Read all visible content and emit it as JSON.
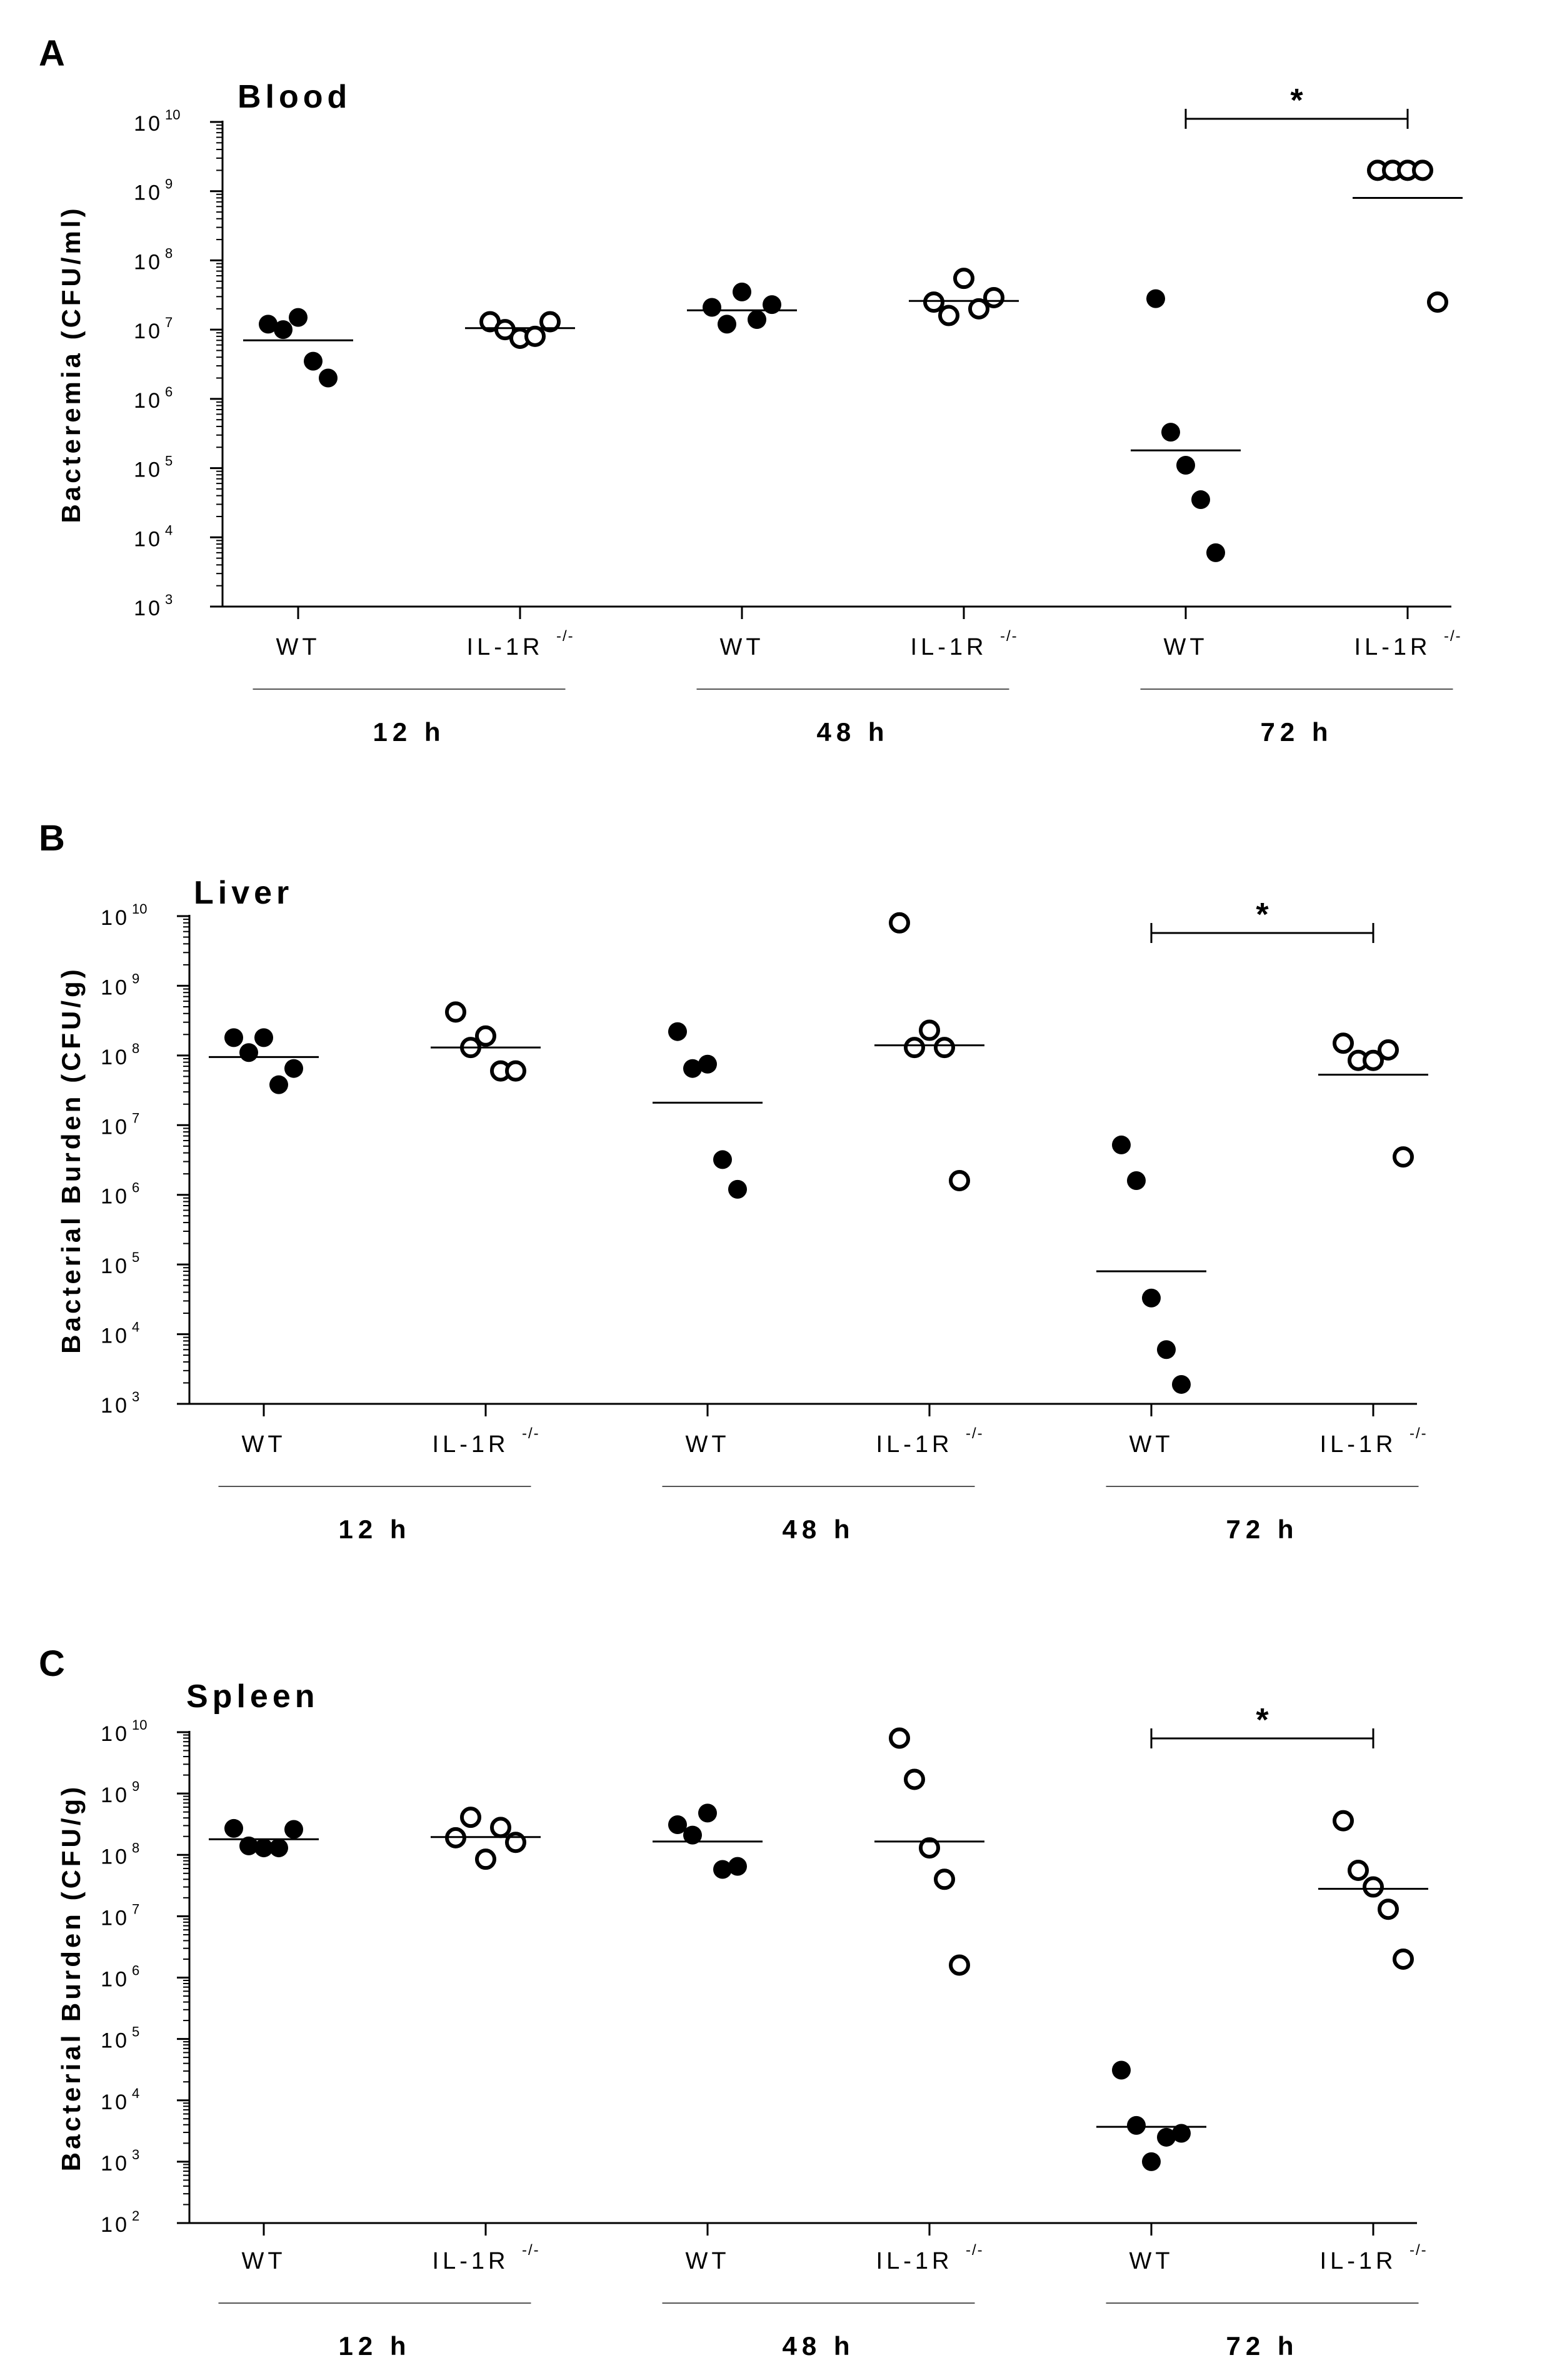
{
  "figure": {
    "panels": [
      "A",
      "B",
      "C"
    ]
  },
  "chart_data": [
    {
      "panel": "A",
      "type": "scatter",
      "title": "Blood",
      "ylabel": "Bacteremia (CFU/ml)",
      "yscale": "log10",
      "ylim": [
        1000,
        10000000000
      ],
      "yticks": [
        "10",
        "10",
        "10",
        "10",
        "10",
        "10",
        "10",
        "10"
      ],
      "ytick_exponents": [
        "3",
        "4",
        "5",
        "6",
        "7",
        "8",
        "9",
        "10"
      ],
      "categories": [
        "WT",
        "IL-1R",
        "WT",
        "IL-1R",
        "WT",
        "IL-1R"
      ],
      "category_superscripts": [
        "",
        "-/-",
        "",
        "-/-",
        "",
        "-/-"
      ],
      "groups": [
        "12 h",
        "48 h",
        "72 h"
      ],
      "series": [
        {
          "name": "12 h WT",
          "fill": "filled",
          "values": [
            12000000,
            10000000,
            15000000,
            3500000,
            2000000
          ],
          "median": 7000000
        },
        {
          "name": "12 h IL-1R-/-",
          "fill": "open",
          "values": [
            13000000,
            10000000,
            7500000,
            8000000,
            13000000
          ],
          "median": 10500000
        },
        {
          "name": "48 h WT",
          "fill": "filled",
          "values": [
            21000000,
            12000000,
            35000000,
            14000000,
            23000000
          ],
          "median": 19000000
        },
        {
          "name": "48 h IL-1R-/-",
          "fill": "open",
          "values": [
            25000000,
            16000000,
            55000000,
            20000000,
            29000000
          ],
          "median": 26000000
        },
        {
          "name": "72 h WT",
          "fill": "filled",
          "values": [
            28000000,
            330000,
            110000,
            35000,
            6000
          ],
          "median": 180000
        },
        {
          "name": "72 h IL-1R-/-",
          "fill": "open",
          "values": [
            2000000000,
            2000000000,
            2000000000,
            2000000000,
            25000000
          ],
          "median": 800000000
        }
      ],
      "significance": {
        "label": "*",
        "between": [
          "72 h WT",
          "72 h IL-1R-/-"
        ]
      }
    },
    {
      "panel": "B",
      "type": "scatter",
      "title": "Liver",
      "ylabel": "Bacterial Burden (CFU/g)",
      "yscale": "log10",
      "ylim": [
        1000,
        10000000000
      ],
      "yticks": [
        "10",
        "10",
        "10",
        "10",
        "10",
        "10",
        "10",
        "10"
      ],
      "ytick_exponents": [
        "3",
        "4",
        "5",
        "6",
        "7",
        "8",
        "9",
        "10"
      ],
      "categories": [
        "WT",
        "IL-1R",
        "WT",
        "IL-1R",
        "WT",
        "IL-1R"
      ],
      "category_superscripts": [
        "",
        "-/-",
        "",
        "-/-",
        "",
        "-/-"
      ],
      "groups": [
        "12 h",
        "48 h",
        "72 h"
      ],
      "series": [
        {
          "name": "12 h WT",
          "fill": "filled",
          "values": [
            180000000,
            110000000,
            180000000,
            38000000,
            65000000
          ],
          "median": 95000000
        },
        {
          "name": "12 h IL-1R-/-",
          "fill": "open",
          "values": [
            420000000,
            130000000,
            190000000,
            60000000,
            60000000
          ],
          "median": 130000000
        },
        {
          "name": "48 h WT",
          "fill": "filled",
          "values": [
            220000000,
            65000000,
            75000000,
            3200000,
            1200000
          ],
          "median": 21000000
        },
        {
          "name": "48 h IL-1R-/-",
          "fill": "open",
          "values": [
            8000000000,
            130000000,
            230000000,
            130000000,
            1600000
          ],
          "median": 140000000
        },
        {
          "name": "72 h WT",
          "fill": "filled",
          "values": [
            5200000,
            1600000,
            33000,
            6000,
            1900
          ],
          "median": 80000
        },
        {
          "name": "72 h IL-1R-/-",
          "fill": "open",
          "values": [
            150000000,
            85000000,
            85000000,
            120000000,
            3500000
          ],
          "median": 53000000
        }
      ],
      "significance": {
        "label": "*",
        "between": [
          "72 h WT",
          "72 h IL-1R-/-"
        ]
      }
    },
    {
      "panel": "C",
      "type": "scatter",
      "title": "Spleen",
      "ylabel": "Bacterial Burden (CFU/g)",
      "yscale": "log10",
      "ylim": [
        100,
        10000000000
      ],
      "yticks": [
        "10",
        "10",
        "10",
        "10",
        "10",
        "10",
        "10",
        "10",
        "10"
      ],
      "ytick_exponents": [
        "2",
        "3",
        "4",
        "5",
        "6",
        "7",
        "8",
        "9",
        "10"
      ],
      "categories": [
        "WT",
        "IL-1R",
        "WT",
        "IL-1R",
        "WT",
        "IL-1R"
      ],
      "category_superscripts": [
        "",
        "-/-",
        "",
        "-/-",
        "",
        "-/-"
      ],
      "groups": [
        "12 h",
        "48 h",
        "72 h"
      ],
      "series": [
        {
          "name": "12 h WT",
          "fill": "filled",
          "values": [
            270000000,
            140000000,
            130000000,
            130000000,
            260000000
          ],
          "median": 180000000
        },
        {
          "name": "12 h IL-1R-/-",
          "fill": "open",
          "values": [
            190000000,
            410000000,
            85000000,
            280000000,
            160000000
          ],
          "median": 195000000
        },
        {
          "name": "48 h WT",
          "fill": "filled",
          "values": [
            310000000,
            210000000,
            480000000,
            58000000,
            65000000
          ],
          "median": 165000000
        },
        {
          "name": "48 h IL-1R-/-",
          "fill": "open",
          "values": [
            8000000000,
            1700000000,
            130000000,
            40000000,
            1600000
          ],
          "median": 165000000
        },
        {
          "name": "72 h WT",
          "fill": "filled",
          "values": [
            31000,
            3900,
            1000,
            2500,
            2900
          ],
          "median": 3700
        },
        {
          "name": "72 h IL-1R-/-",
          "fill": "open",
          "values": [
            360000000,
            56000000,
            30000000,
            13000000,
            2000000
          ],
          "median": 28000000
        }
      ],
      "significance": {
        "label": "*",
        "between": [
          "72 h WT",
          "72 h IL-1R-/-"
        ]
      }
    }
  ]
}
